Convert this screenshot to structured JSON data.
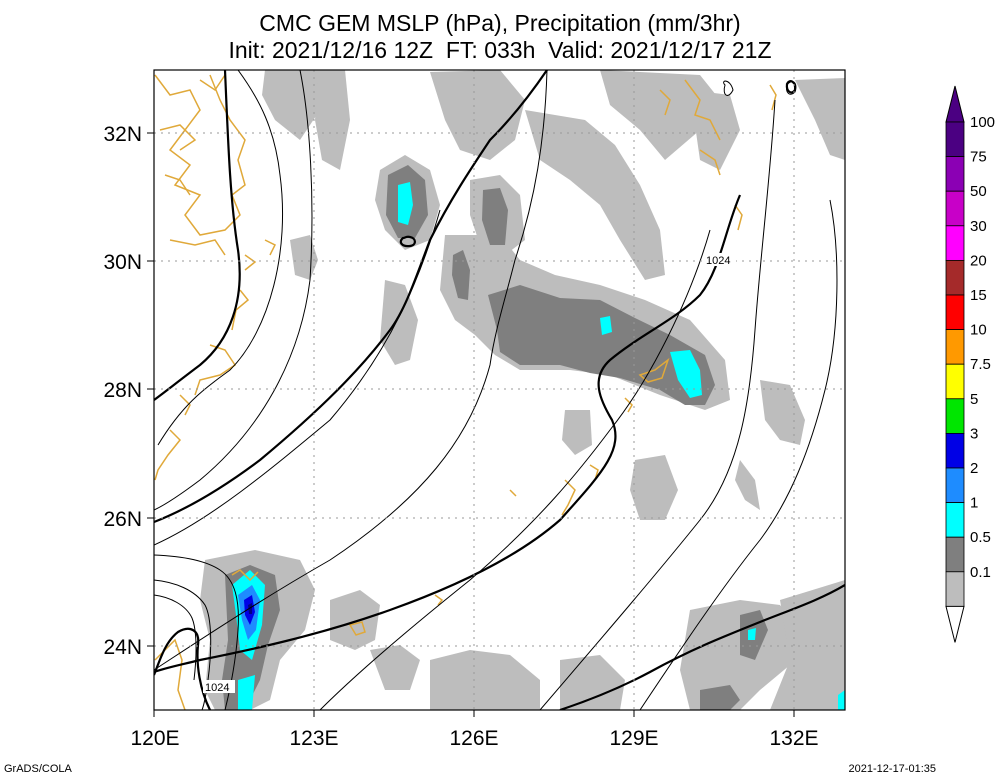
{
  "title": {
    "line1": "CMC GEM MSLP (hPa), Precipitation (mm/3hr)",
    "line2": "Init: 2021/12/16 12Z  FT: 033h  Valid: 2021/12/17 21Z"
  },
  "map": {
    "lon_labels": [
      "120E",
      "123E",
      "126E",
      "129E",
      "132E"
    ],
    "lat_labels": [
      "32N",
      "30N",
      "28N",
      "26N",
      "24N"
    ],
    "isobar_labels": [
      "1024",
      "1024"
    ],
    "colors": {
      "coastline": "#e0a93a",
      "precip_light": "#bdbdbd",
      "precip_mid": "#7f7f7f",
      "precip_1": "#00ffff",
      "precip_2": "#1e8cff",
      "precip_3": "#0000e6",
      "grid": "#999999"
    }
  },
  "legend": {
    "levels": [
      {
        "label": "100",
        "color": "#4b0082"
      },
      {
        "label": "75",
        "color": "#8b00b4"
      },
      {
        "label": "50",
        "color": "#c800c8"
      },
      {
        "label": "30",
        "color": "#ff00ff"
      },
      {
        "label": "20",
        "color": "#a52a2a"
      },
      {
        "label": "15",
        "color": "#ff0000"
      },
      {
        "label": "10",
        "color": "#ff9900"
      },
      {
        "label": "7.5",
        "color": "#ffff00"
      },
      {
        "label": "5",
        "color": "#00e600"
      },
      {
        "label": "3",
        "color": "#0000e6"
      },
      {
        "label": "2",
        "color": "#1e8cff"
      },
      {
        "label": "1",
        "color": "#00ffff"
      },
      {
        "label": "0.5",
        "color": "#7f7f7f"
      },
      {
        "label": "0.1",
        "color": "#bdbdbd"
      }
    ],
    "top_color": "#4b0082",
    "bottom_color": "#ffffff"
  },
  "footer": {
    "left": "GrADS/COLA",
    "right": "2021-12-17-01:35"
  }
}
